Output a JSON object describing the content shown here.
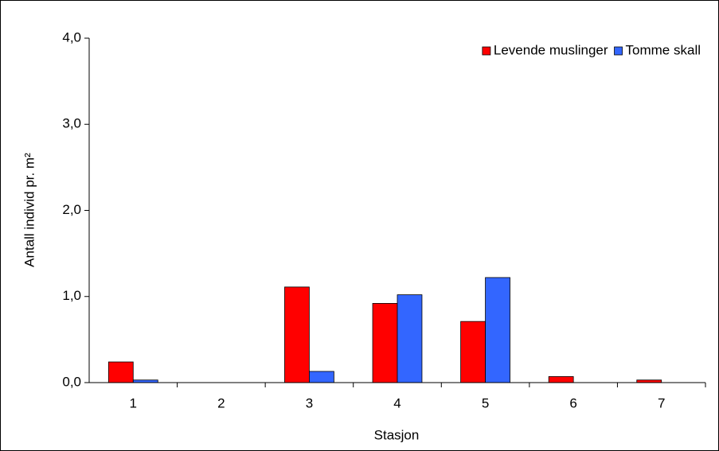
{
  "chart_data": {
    "type": "bar",
    "x_label": "Stasjon",
    "y_label": "Antall individ pr. m²",
    "categories": [
      "1",
      "2",
      "3",
      "4",
      "5",
      "6",
      "7"
    ],
    "series": [
      {
        "name": "Levende muslinger",
        "color": "#ff0000",
        "values": [
          0.24,
          0,
          1.11,
          0.92,
          0.71,
          0.07,
          0.03
        ]
      },
      {
        "name": "Tomme skall",
        "color": "#3366ff",
        "values": [
          0.03,
          0,
          0.13,
          1.02,
          1.22,
          0,
          0
        ]
      }
    ],
    "ylim": [
      0,
      4
    ],
    "yticks": [
      {
        "value": 0,
        "label": "0,0"
      },
      {
        "value": 1,
        "label": "1,0"
      },
      {
        "value": 2,
        "label": "2,0"
      },
      {
        "value": 3,
        "label": "3,0"
      },
      {
        "value": 4,
        "label": "4,0"
      }
    ],
    "grid": false,
    "legend": "top-right"
  }
}
